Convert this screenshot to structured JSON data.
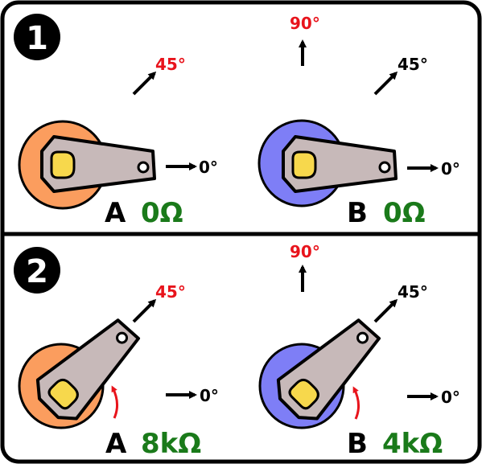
{
  "panels": [
    {
      "step": "1",
      "servos": [
        {
          "id": "A",
          "resistance": "0Ω",
          "hub_color": "#fb9d5e",
          "angle_deg": 0,
          "show_arrow": false
        },
        {
          "id": "B",
          "resistance": "0Ω",
          "hub_color": "#7e7ef6",
          "angle_deg": 0,
          "show_arrow": false
        }
      ]
    },
    {
      "step": "2",
      "servos": [
        {
          "id": "A",
          "resistance": "8kΩ",
          "hub_color": "#fb9d5e",
          "angle_deg": 45,
          "show_arrow": true
        },
        {
          "id": "B",
          "resistance": "4kΩ",
          "hub_color": "#7e7ef6",
          "angle_deg": 45,
          "show_arrow": true
        }
      ]
    }
  ],
  "angle_labels": {
    "a0": "0°",
    "a45": "45°",
    "a90": "90°"
  },
  "colors": {
    "resistance_text": "#1a7a1a",
    "angle_90_text": "#e8141c",
    "angle_45_text_panel1_left": "#e8141c",
    "angle_45_text_panel2": "#e8141c",
    "angle_45_text_panel1_right": "#000000",
    "horn": "#c7b9b9",
    "shaft": "#f7d84c",
    "rotation_arrow": "#e8141c"
  }
}
